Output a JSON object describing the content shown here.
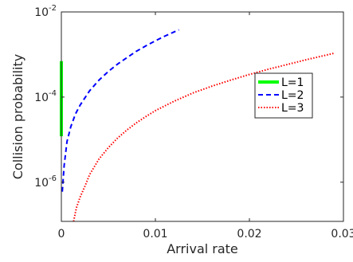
{
  "chart_data": {
    "type": "line",
    "xlabel": "Arrival rate",
    "ylabel": "Collision probability",
    "xlim": [
      0,
      0.03
    ],
    "ylim": [
      1.2e-07,
      0.01
    ],
    "yscale": "log",
    "x_ticks": [
      {
        "value": 0,
        "label": "0"
      },
      {
        "value": 0.01,
        "label": "0.01"
      },
      {
        "value": 0.02,
        "label": "0.02"
      },
      {
        "value": 0.03,
        "label": "0.03"
      }
    ],
    "y_ticks": [
      {
        "value": 1e-06,
        "base": "10",
        "exp": "-6"
      },
      {
        "value": 0.0001,
        "base": "10",
        "exp": "-4"
      },
      {
        "value": 0.01,
        "base": "10",
        "exp": "-2"
      }
    ],
    "grid": false,
    "legend_position": "right",
    "series": [
      {
        "name": "L=1",
        "color": "#00ff00",
        "style": "solid",
        "points": [
          [
            0.0,
            1.2e-05
          ],
          [
            0.0,
            4e-05
          ],
          [
            0.0,
            0.0002
          ],
          [
            0.0,
            0.0007
          ]
        ]
      },
      {
        "name": "L=2",
        "color": "#0000ff",
        "style": "dashed",
        "points": [
          [
            0.0001,
            6e-07
          ],
          [
            0.0003,
            2.5e-06
          ],
          [
            0.0006,
            9e-06
          ],
          [
            0.001,
            2e-05
          ],
          [
            0.0015,
            4e-05
          ],
          [
            0.002,
            6.5e-05
          ],
          [
            0.003,
            0.00014
          ],
          [
            0.004,
            0.00025
          ],
          [
            0.005,
            0.0004
          ],
          [
            0.006,
            0.0006
          ],
          [
            0.007,
            0.00085
          ],
          [
            0.008,
            0.0012
          ],
          [
            0.009,
            0.0016
          ],
          [
            0.01,
            0.0021
          ],
          [
            0.011,
            0.0027
          ],
          [
            0.012,
            0.0034
          ],
          [
            0.0125,
            0.0038
          ]
        ]
      },
      {
        "name": "L=3",
        "color": "#ff0000",
        "style": "dotted",
        "points": [
          [
            0.0013,
            1.2e-07
          ],
          [
            0.0016,
            2.5e-07
          ],
          [
            0.002,
            4.5e-07
          ],
          [
            0.0025,
            8e-07
          ],
          [
            0.003,
            1.5e-06
          ],
          [
            0.004,
            3.5e-06
          ],
          [
            0.005,
            6.5e-06
          ],
          [
            0.006,
            1.1e-05
          ],
          [
            0.007,
            1.7e-05
          ],
          [
            0.008,
            2.5e-05
          ],
          [
            0.009,
            3.5e-05
          ],
          [
            0.01,
            4.8e-05
          ],
          [
            0.012,
            8e-05
          ],
          [
            0.014,
            0.000125
          ],
          [
            0.016,
            0.00018
          ],
          [
            0.018,
            0.00025
          ],
          [
            0.02,
            0.00034
          ],
          [
            0.022,
            0.00045
          ],
          [
            0.024,
            0.00058
          ],
          [
            0.026,
            0.00075
          ],
          [
            0.028,
            0.00095
          ],
          [
            0.029,
            0.00107
          ]
        ]
      }
    ]
  }
}
